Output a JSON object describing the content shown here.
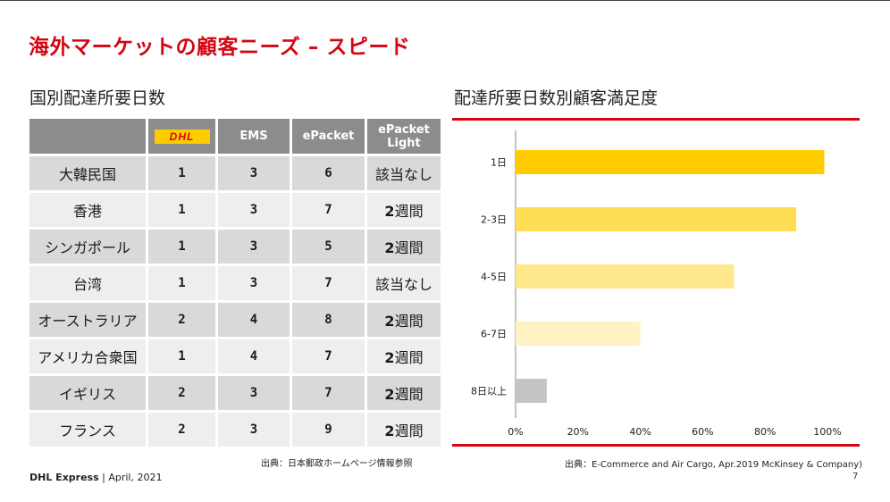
{
  "slide": {
    "title": "海外マーケットの顧客ニーズ – スピード",
    "left_title": "国別配達所要日数",
    "right_title": "配達所要日数別顧客満足度",
    "source_left": "出典：日本郵政ホームページ情報参照",
    "source_right": "出典：E-Commerce and Air Cargo, Apr.2019 McKinsey & Company)",
    "footer_brand": "DHL Express",
    "footer_date": " | April, 2021",
    "page_number": "7"
  },
  "table": {
    "headers": [
      "",
      "DHL",
      "EMS",
      "ePacket",
      "ePacket Light"
    ],
    "header_line1_ep_light": "ePacket",
    "header_line2_ep_light": "Light",
    "rows": [
      {
        "country": "大韓民国",
        "dhl": "1",
        "ems": "3",
        "epacket": "6",
        "light_num": "",
        "light_text": "該当なし"
      },
      {
        "country": "香港",
        "dhl": "1",
        "ems": "3",
        "epacket": "7",
        "light_num": "2",
        "light_text": "週間"
      },
      {
        "country": "シンガポール",
        "dhl": "1",
        "ems": "3",
        "epacket": "5",
        "light_num": "2",
        "light_text": "週間"
      },
      {
        "country": "台湾",
        "dhl": "1",
        "ems": "3",
        "epacket": "7",
        "light_num": "",
        "light_text": "該当なし"
      },
      {
        "country": "オーストラリア",
        "dhl": "2",
        "ems": "4",
        "epacket": "8",
        "light_num": "2",
        "light_text": "週間"
      },
      {
        "country": "アメリカ合衆国",
        "dhl": "1",
        "ems": "4",
        "epacket": "7",
        "light_num": "2",
        "light_text": "週間"
      },
      {
        "country": "イギリス",
        "dhl": "2",
        "ems": "3",
        "epacket": "7",
        "light_num": "2",
        "light_text": "週間"
      },
      {
        "country": "フランス",
        "dhl": "2",
        "ems": "3",
        "epacket": "9",
        "light_num": "2",
        "light_text": "週間"
      }
    ]
  },
  "colors": {
    "brand_red": "#d40511",
    "dhl_yellow": "#ffcc00",
    "header_gray": "#8c8c8c"
  },
  "chart_data": {
    "type": "bar",
    "orientation": "horizontal",
    "categories": [
      "1日",
      "2-3日",
      "4-5日",
      "6-7日",
      "8日以上"
    ],
    "values": [
      99,
      90,
      70,
      40,
      10
    ],
    "bar_colors": [
      "#ffcc00",
      "#ffde55",
      "#ffe88c",
      "#fff3c4",
      "#c4c4c4"
    ],
    "xlim": [
      0,
      100
    ],
    "xticks": [
      "0%",
      "20%",
      "40%",
      "60%",
      "80%",
      "100%"
    ],
    "grid": false,
    "legend": "none"
  }
}
